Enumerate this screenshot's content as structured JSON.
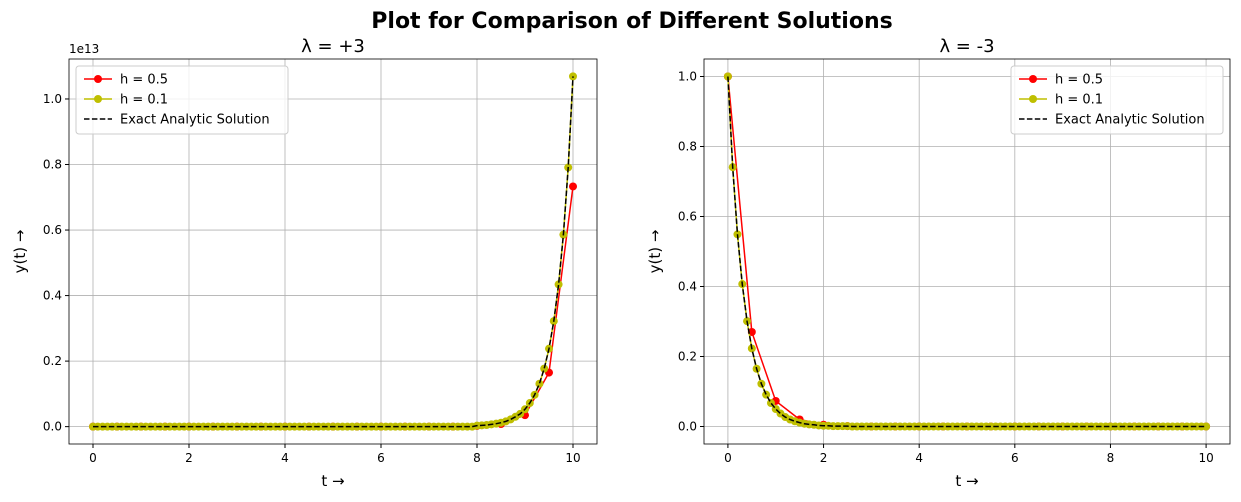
{
  "title": "Plot for Comparison of Different Solutions",
  "chart_data": [
    {
      "type": "line",
      "title": "λ = +3",
      "xlabel": "t →",
      "ylabel": "y(t) →",
      "offset_text": "1e13",
      "x": [
        0,
        0.1,
        0.2,
        0.3,
        0.4,
        0.5,
        0.6,
        0.7,
        0.8,
        0.9,
        1,
        1.1,
        1.2,
        1.3,
        1.4,
        1.5,
        1.6,
        1.7,
        1.8,
        1.9,
        2,
        2.1,
        2.2,
        2.3,
        2.4,
        2.5,
        2.6,
        2.7,
        2.8,
        2.9,
        3,
        3.1,
        3.2,
        3.3,
        3.4,
        3.5,
        3.6,
        3.7,
        3.8,
        3.9,
        4,
        4.1,
        4.2,
        4.3,
        4.4,
        4.5,
        4.6,
        4.7,
        4.8,
        4.9,
        5,
        5.1,
        5.2,
        5.3,
        5.4,
        5.5,
        5.6,
        5.7,
        5.8,
        5.9,
        6,
        6.1,
        6.2,
        6.3,
        6.4,
        6.5,
        6.6,
        6.7,
        6.8,
        6.9,
        7,
        7.1,
        7.2,
        7.3,
        7.4,
        7.5,
        7.6,
        7.7,
        7.8,
        7.9,
        8,
        8.1,
        8.2,
        8.3,
        8.4,
        8.5,
        8.6,
        8.7,
        8.8,
        8.9,
        9,
        9.1,
        9.2,
        9.3,
        9.4,
        9.5,
        9.6,
        9.7,
        9.8,
        9.9,
        10
      ],
      "xlim": [
        -0.5,
        10.5
      ],
      "ylim": [
        -0.053,
        1.122
      ],
      "xticks": [
        0,
        2,
        4,
        6,
        8,
        10
      ],
      "yticks": [
        {
          "value": 0,
          "label": "0.0"
        },
        0.2,
        0.4,
        0.6,
        0.8,
        {
          "value": 1,
          "label": "1.0"
        }
      ],
      "grid": true,
      "legend": "upper left",
      "series": [
        {
          "name": "h = 0.5",
          "color": "#ff0000",
          "marker": "o",
          "linestyle": "solid",
          "x": [
            0,
            0.5,
            1,
            1.5,
            2,
            2.5,
            3,
            3.5,
            4,
            4.5,
            5,
            5.5,
            6,
            6.5,
            7,
            7.5,
            8,
            8.5,
            9,
            9.5,
            10
          ],
          "values": [
            0,
            0,
            0,
            0,
            0,
            0,
            0,
            0,
            0,
            0,
            0,
            0,
            0,
            0,
            0,
            0,
            0.002,
            0.008,
            0.035,
            0.165,
            0.733
          ]
        },
        {
          "name": "h = 0.1",
          "color": "#bfbf00",
          "marker": "o",
          "linestyle": "solid",
          "values": [
            0,
            0,
            0,
            0,
            0,
            0,
            0,
            0,
            0,
            0,
            0,
            0,
            0,
            0,
            0,
            0,
            0,
            0,
            0,
            0,
            0,
            0,
            0,
            0,
            0,
            0,
            0,
            0,
            0,
            0,
            0,
            0,
            0,
            0,
            0,
            0,
            0,
            0,
            0,
            0,
            0,
            0,
            0,
            0,
            0,
            0,
            0,
            0,
            0,
            0,
            0,
            0,
            0,
            0,
            0,
            0,
            0,
            0,
            0,
            0,
            0,
            0,
            0,
            0,
            0,
            0,
            0,
            0,
            0,
            0,
            0,
            0,
            0,
            0,
            0,
            0,
            0,
            0,
            0,
            0,
            0.003,
            0.004,
            0.005,
            0.007,
            0.009,
            0.012,
            0.016,
            0.022,
            0.03,
            0.039,
            0.053,
            0.072,
            0.097,
            0.131,
            0.177,
            0.238,
            0.322,
            0.434,
            0.586,
            0.791,
            1.069
          ]
        },
        {
          "name": "Exact Analytic Solution",
          "color": "#000000",
          "marker": "none",
          "linestyle": "dashed",
          "values": [
            0,
            0,
            0,
            0,
            0,
            0,
            0,
            0,
            0,
            0,
            0,
            0,
            0,
            0,
            0,
            0,
            0,
            0,
            0,
            0,
            0,
            0,
            0,
            0,
            0,
            0,
            0,
            0,
            0,
            0,
            0,
            0,
            0,
            0,
            0,
            0,
            0,
            0,
            0,
            0,
            0,
            0,
            0,
            0,
            0,
            0,
            0,
            0,
            0,
            0,
            0,
            0,
            0,
            0,
            0,
            0,
            0,
            0,
            0,
            0,
            0,
            0,
            0,
            0,
            0,
            0,
            0,
            0,
            0,
            0,
            0,
            0,
            0,
            0,
            0,
            0,
            0,
            0,
            0,
            0,
            0.003,
            0.004,
            0.005,
            0.007,
            0.009,
            0.012,
            0.016,
            0.022,
            0.03,
            0.039,
            0.053,
            0.072,
            0.097,
            0.131,
            0.177,
            0.238,
            0.322,
            0.434,
            0.586,
            0.791,
            1.069
          ]
        }
      ]
    },
    {
      "type": "line",
      "title": "λ = -3",
      "xlabel": "t →",
      "ylabel": "y(t) →",
      "x": [
        0,
        0.1,
        0.2,
        0.3,
        0.4,
        0.5,
        0.6,
        0.7,
        0.8,
        0.9,
        1,
        1.1,
        1.2,
        1.3,
        1.4,
        1.5,
        1.6,
        1.7,
        1.8,
        1.9,
        2,
        2.1,
        2.2,
        2.3,
        2.4,
        2.5,
        2.6,
        2.7,
        2.8,
        2.9,
        3,
        3.1,
        3.2,
        3.3,
        3.4,
        3.5,
        3.6,
        3.7,
        3.8,
        3.9,
        4,
        4.1,
        4.2,
        4.3,
        4.4,
        4.5,
        4.6,
        4.7,
        4.8,
        4.9,
        5,
        5.1,
        5.2,
        5.3,
        5.4,
        5.5,
        5.6,
        5.7,
        5.8,
        5.9,
        6,
        6.1,
        6.2,
        6.3,
        6.4,
        6.5,
        6.6,
        6.7,
        6.8,
        6.9,
        7,
        7.1,
        7.2,
        7.3,
        7.4,
        7.5,
        7.6,
        7.7,
        7.8,
        7.9,
        8,
        8.1,
        8.2,
        8.3,
        8.4,
        8.5,
        8.6,
        8.7,
        8.8,
        8.9,
        9,
        9.1,
        9.2,
        9.3,
        9.4,
        9.5,
        9.6,
        9.7,
        9.8,
        9.9,
        10
      ],
      "xlim": [
        -0.5,
        10.5
      ],
      "ylim": [
        -0.05,
        1.05
      ],
      "xticks": [
        0,
        2,
        4,
        6,
        8,
        10
      ],
      "yticks": [
        {
          "value": 0,
          "label": "0.0"
        },
        0.2,
        0.4,
        0.6,
        0.8,
        {
          "value": 1,
          "label": "1.0"
        }
      ],
      "grid": true,
      "legend": "upper right",
      "series": [
        {
          "name": "h = 0.5",
          "color": "#ff0000",
          "marker": "o",
          "linestyle": "solid",
          "x": [
            0,
            0.5,
            1,
            1.5,
            2,
            2.5,
            3,
            3.5,
            4,
            4.5,
            5,
            5.5,
            6,
            6.5,
            7,
            7.5,
            8,
            8.5,
            9,
            9.5,
            10
          ],
          "values": [
            1,
            0.27,
            0.073,
            0.02,
            0.005,
            0.001,
            0,
            0,
            0,
            0,
            0,
            0,
            0,
            0,
            0,
            0,
            0,
            0,
            0,
            0,
            0
          ]
        },
        {
          "name": "h = 0.1",
          "color": "#bfbf00",
          "marker": "o",
          "linestyle": "solid",
          "values": [
            1,
            0.741,
            0.549,
            0.407,
            0.301,
            0.223,
            0.165,
            0.122,
            0.091,
            0.067,
            0.05,
            0.037,
            0.027,
            0.02,
            0.015,
            0.011,
            0.008,
            0.006,
            0.005,
            0.003,
            0.002,
            0.002,
            0.001,
            0.001,
            0.001,
            0.001,
            0,
            0,
            0,
            0,
            0,
            0,
            0,
            0,
            0,
            0,
            0,
            0,
            0,
            0,
            0,
            0,
            0,
            0,
            0,
            0,
            0,
            0,
            0,
            0,
            0,
            0,
            0,
            0,
            0,
            0,
            0,
            0,
            0,
            0,
            0,
            0,
            0,
            0,
            0,
            0,
            0,
            0,
            0,
            0,
            0,
            0,
            0,
            0,
            0,
            0,
            0,
            0,
            0,
            0,
            0,
            0,
            0,
            0,
            0,
            0,
            0,
            0,
            0,
            0,
            0,
            0,
            0,
            0,
            0,
            0,
            0,
            0,
            0,
            0,
            0
          ]
        },
        {
          "name": "Exact Analytic Solution",
          "color": "#000000",
          "marker": "none",
          "linestyle": "dashed",
          "values": [
            1,
            0.741,
            0.549,
            0.407,
            0.301,
            0.223,
            0.165,
            0.122,
            0.091,
            0.067,
            0.05,
            0.037,
            0.027,
            0.02,
            0.015,
            0.011,
            0.008,
            0.006,
            0.005,
            0.003,
            0.002,
            0.002,
            0.001,
            0.001,
            0.001,
            0.001,
            0,
            0,
            0,
            0,
            0,
            0,
            0,
            0,
            0,
            0,
            0,
            0,
            0,
            0,
            0,
            0,
            0,
            0,
            0,
            0,
            0,
            0,
            0,
            0,
            0,
            0,
            0,
            0,
            0,
            0,
            0,
            0,
            0,
            0,
            0,
            0,
            0,
            0,
            0,
            0,
            0,
            0,
            0,
            0,
            0,
            0,
            0,
            0,
            0,
            0,
            0,
            0,
            0,
            0,
            0,
            0,
            0,
            0,
            0,
            0,
            0,
            0,
            0,
            0,
            0,
            0,
            0,
            0,
            0,
            0,
            0,
            0,
            0,
            0,
            0
          ]
        }
      ]
    }
  ]
}
